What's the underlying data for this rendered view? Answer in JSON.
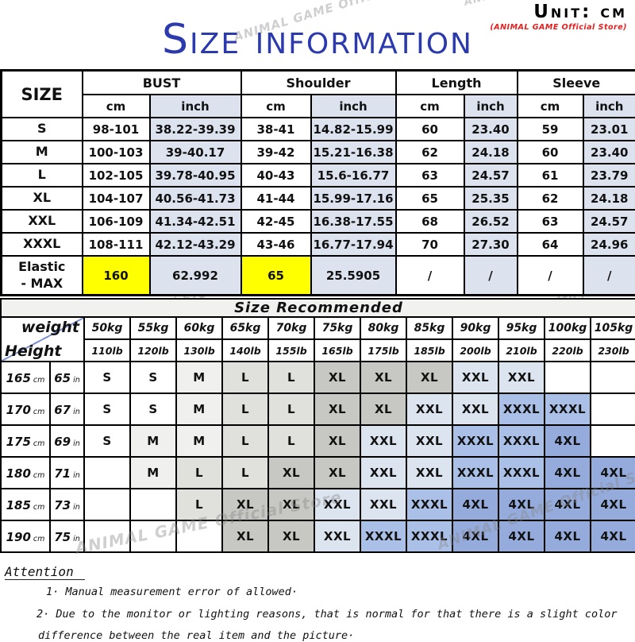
{
  "unit_label": "Unit: cm",
  "store_note": "(ANIMAL GAME Official Store)",
  "title": "Size information",
  "watermark": "ANIMAL GAME Official Store",
  "colors": {
    "title_blue": "#2b3aad",
    "red_note": "#e61e1e",
    "inch_bg": "#dce3ee",
    "highlight_yellow": "#ffff00",
    "banner_bg": "#f1f1f0",
    "diag_line": "#7b90d0",
    "watermark_gray": "rgba(135,135,135,0.40)"
  },
  "size_table": {
    "corner_label": "SIZE",
    "groups": [
      {
        "label": "BUST"
      },
      {
        "label": "Shoulder"
      },
      {
        "label": "Length"
      },
      {
        "label": "Sleeve"
      }
    ],
    "unit_cm": "cm",
    "unit_inch": "inch",
    "rows": [
      {
        "size": "S",
        "cells": [
          "98-101",
          "38.22-39.39",
          "38-41",
          "14.82-15.99",
          "60",
          "23.40",
          "59",
          "23.01"
        ]
      },
      {
        "size": "M",
        "cells": [
          "100-103",
          "39-40.17",
          "39-42",
          "15.21-16.38",
          "62",
          "24.18",
          "60",
          "23.40"
        ]
      },
      {
        "size": "L",
        "cells": [
          "102-105",
          "39.78-40.95",
          "40-43",
          "15.6-16.77",
          "63",
          "24.57",
          "61",
          "23.79"
        ]
      },
      {
        "size": "XL",
        "cells": [
          "104-107",
          "40.56-41.73",
          "41-44",
          "15.99-17.16",
          "65",
          "25.35",
          "62",
          "24.18"
        ]
      },
      {
        "size": "XXL",
        "cells": [
          "106-109",
          "41.34-42.51",
          "42-45",
          "16.38-17.55",
          "68",
          "26.52",
          "63",
          "24.57"
        ]
      },
      {
        "size": "XXXL",
        "cells": [
          "108-111",
          "42.12-43.29",
          "43-46",
          "16.77-17.94",
          "70",
          "27.30",
          "64",
          "24.96"
        ]
      },
      {
        "size": "Elastic\n- MAX",
        "cells": [
          "160",
          "62.992",
          "65",
          "25.5905",
          "/",
          "/",
          "/",
          "/"
        ],
        "highlight": [
          0,
          2
        ]
      }
    ]
  },
  "recommend_table": {
    "title": "Size Recommended",
    "weight_label": "weight",
    "height_label": "Height",
    "unit_cm": "cm",
    "unit_in": "in",
    "weights_kg": [
      "50kg",
      "55kg",
      "60kg",
      "65kg",
      "70kg",
      "75kg",
      "80kg",
      "85kg",
      "90kg",
      "95kg",
      "100kg",
      "105kg"
    ],
    "weights_lb": [
      "110lb",
      "120lb",
      "130lb",
      "140lb",
      "155lb",
      "165lb",
      "175lb",
      "185lb",
      "200lb",
      "210lb",
      "220lb",
      "230lb"
    ],
    "size_colors": {
      "S": "#ffffff",
      "M": "#f0f0ee",
      "L": "#e0e0dd",
      "XL": "#c7c7c3",
      "XXL": "#dce4ef",
      "XXXL": "#abc0e7",
      "4XL": "#94abdc",
      "": "#ffffff"
    },
    "rows": [
      {
        "height_cm": "165",
        "height_in": "65",
        "sizes": [
          "S",
          "S",
          "M",
          "L",
          "L",
          "XL",
          "XL",
          "XL",
          "XXL",
          "XXL",
          "",
          ""
        ]
      },
      {
        "height_cm": "170",
        "height_in": "67",
        "sizes": [
          "S",
          "S",
          "M",
          "L",
          "L",
          "XL",
          "XL",
          "XXL",
          "XXL",
          "XXXL",
          "XXXL",
          ""
        ]
      },
      {
        "height_cm": "175",
        "height_in": "69",
        "sizes": [
          "S",
          "M",
          "M",
          "L",
          "L",
          "XL",
          "XXL",
          "XXL",
          "XXXL",
          "XXXL",
          "4XL",
          ""
        ]
      },
      {
        "height_cm": "180",
        "height_in": "71",
        "sizes": [
          "",
          "M",
          "L",
          "L",
          "XL",
          "XL",
          "XXL",
          "XXL",
          "XXXL",
          "XXXL",
          "4XL",
          "4XL"
        ]
      },
      {
        "height_cm": "185",
        "height_in": "73",
        "sizes": [
          "",
          "",
          "L",
          "XL",
          "XL",
          "XXL",
          "XXL",
          "XXXL",
          "4XL",
          "4XL",
          "4XL",
          "4XL"
        ]
      },
      {
        "height_cm": "190",
        "height_in": "75",
        "sizes": [
          "",
          "",
          "",
          "XL",
          "XL",
          "XXL",
          "XXXL",
          "XXXL",
          "4XL",
          "4XL",
          "4XL",
          "4XL"
        ]
      }
    ]
  },
  "attention": {
    "heading": "Attention",
    "note1": "1·  Manual measurement error of allowed·",
    "note2_line1": "2·  Due to the monitor or lighting reasons, that is normal for that there is a slight color",
    "note2_line2": "difference between the real item and the picture·"
  }
}
